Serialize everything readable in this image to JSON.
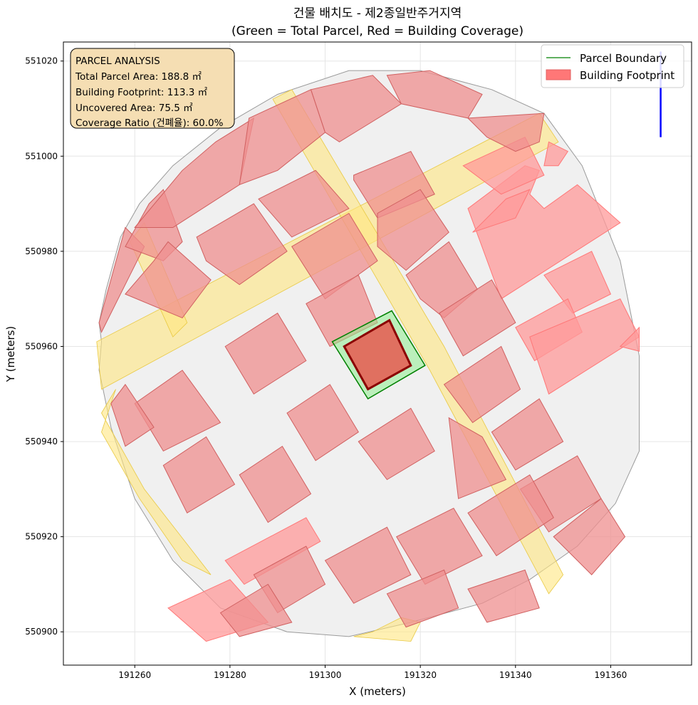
{
  "chart_data": {
    "type": "map",
    "title_line1": "건물 배치도 - 제2종일반주거지역",
    "title_line2": "(Green = Total Parcel, Red = Building Coverage)",
    "xlabel": "X (meters)",
    "ylabel": "Y (meters)",
    "xlim": [
      191245,
      191377
    ],
    "ylim": [
      550893,
      551024
    ],
    "xticks": [
      191260,
      191280,
      191300,
      191320,
      191340,
      191360
    ],
    "yticks": [
      550900,
      550920,
      550940,
      550960,
      550980,
      551000,
      551020
    ],
    "grid": true,
    "legend_position": "top-right",
    "legend": [
      {
        "label": "Parcel Boundary",
        "kind": "line",
        "color": "#008000"
      },
      {
        "label": "Building Footprint",
        "kind": "patch",
        "color": "#ff7777"
      }
    ],
    "analysis_box": {
      "lines": [
        "PARCEL ANALYSIS",
        "Total Parcel Area: 188.8 ㎡",
        "Building Footprint: 113.3 ㎡",
        "Uncovered Area: 75.5 ㎡",
        "Coverage Ratio (건폐율): 60.0%"
      ],
      "facecolor": "#f5deb3"
    },
    "target_parcel": [
      [
        191301.5,
        550961
      ],
      [
        191314,
        550967.5
      ],
      [
        191321,
        550956
      ],
      [
        191309,
        550949
      ]
    ],
    "target_building": [
      [
        191304,
        550960
      ],
      [
        191313.5,
        550965.5
      ],
      [
        191318,
        550956
      ],
      [
        191309,
        550951
      ]
    ],
    "north_arrow": {
      "x": 191370.5,
      "y1": 551004,
      "y2": 551022,
      "color": "#0000ff"
    },
    "context_outline": [
      [
        191253,
        550961
      ],
      [
        191252.5,
        550965
      ],
      [
        191254,
        550972
      ],
      [
        191257,
        550983
      ],
      [
        191261,
        550990
      ],
      [
        191268,
        550998
      ],
      [
        191278,
        551006
      ],
      [
        191290,
        551013
      ],
      [
        191305,
        551018
      ],
      [
        191320,
        551018
      ],
      [
        191335,
        551014
      ],
      [
        191346,
        551009
      ],
      [
        191354,
        550998
      ],
      [
        191362,
        550978
      ],
      [
        191366,
        550958
      ],
      [
        191366,
        550938
      ],
      [
        191361,
        550927
      ],
      [
        191353,
        550918
      ],
      [
        191343,
        550911
      ],
      [
        191333,
        550906
      ],
      [
        191318,
        550902
      ],
      [
        191305,
        550899
      ],
      [
        191292,
        550900
      ],
      [
        191278,
        550905
      ],
      [
        191268,
        550915
      ],
      [
        191260,
        550928
      ],
      [
        191255,
        550943
      ],
      [
        191252.5,
        550955
      ]
    ],
    "blocks": [
      [
        [
          191253,
          550963
        ],
        [
          191259,
          550975
        ],
        [
          191262,
          550981
        ],
        [
          191258,
          550985
        ],
        [
          191252.5,
          550965
        ]
      ],
      [
        [
          191258,
          550981
        ],
        [
          191263,
          550990
        ],
        [
          191266,
          550993
        ],
        [
          191270,
          550982
        ],
        [
          191266,
          550978
        ]
      ],
      [
        [
          191260,
          550985
        ],
        [
          191270,
          550997
        ],
        [
          191277,
          551003
        ],
        [
          191285,
          551008
        ],
        [
          191282,
          550994
        ],
        [
          191268,
          550985
        ]
      ],
      [
        [
          191284,
          551008
        ],
        [
          191297,
          551014
        ],
        [
          191300,
          551005
        ],
        [
          191290,
          550997
        ],
        [
          191282,
          550994
        ]
      ],
      [
        [
          191297,
          551014
        ],
        [
          191310,
          551017
        ],
        [
          191316,
          551011
        ],
        [
          191303,
          551003
        ],
        [
          191300,
          551005
        ]
      ],
      [
        [
          191313,
          551017
        ],
        [
          191322,
          551018
        ],
        [
          191333,
          551013
        ],
        [
          191330,
          551008
        ],
        [
          191316,
          551011
        ]
      ],
      [
        [
          191330,
          551008
        ],
        [
          191346,
          551009
        ],
        [
          191345,
          551003
        ],
        [
          191340,
          551001
        ],
        [
          191334,
          551004
        ]
      ],
      [
        [
          191306,
          550996
        ],
        [
          191318,
          551001
        ],
        [
          191323,
          550992
        ],
        [
          191311,
          550987
        ],
        [
          191306,
          550995
        ]
      ],
      [
        [
          191286,
          550991
        ],
        [
          191298,
          550997
        ],
        [
          191305,
          550989
        ],
        [
          191293,
          550983
        ]
      ],
      [
        [
          191273,
          550983
        ],
        [
          191285,
          550990
        ],
        [
          191292,
          550980
        ],
        [
          191282,
          550973
        ],
        [
          191275,
          550978
        ]
      ],
      [
        [
          191258,
          550971
        ],
        [
          191264,
          550978
        ],
        [
          191267,
          550982
        ],
        [
          191276,
          550974
        ],
        [
          191270,
          550966
        ]
      ],
      [
        [
          191293,
          550981
        ],
        [
          191305,
          550988
        ],
        [
          191311,
          550978
        ],
        [
          191300,
          550970
        ]
      ],
      [
        [
          191311,
          550988
        ],
        [
          191320,
          550993
        ],
        [
          191326,
          550984
        ],
        [
          191317,
          550976
        ],
        [
          191311,
          550981
        ]
      ],
      [
        [
          191317,
          550975
        ],
        [
          191326,
          550982
        ],
        [
          191332,
          550972
        ],
        [
          191325,
          550966
        ],
        [
          191320,
          550970
        ]
      ],
      [
        [
          191296,
          550969
        ],
        [
          191307,
          550975
        ],
        [
          191311,
          550965
        ],
        [
          191301,
          550960
        ]
      ],
      [
        [
          191279,
          550960
        ],
        [
          191290,
          550967
        ],
        [
          191296,
          550957
        ],
        [
          191285,
          550950
        ]
      ],
      [
        [
          191260,
          550948
        ],
        [
          191270,
          550955
        ],
        [
          191278,
          550944
        ],
        [
          191266,
          550938
        ]
      ],
      [
        [
          191255,
          550948
        ],
        [
          191258,
          550952
        ],
        [
          191264,
          550943
        ],
        [
          191258,
          550939
        ]
      ],
      [
        [
          191266,
          550935
        ],
        [
          191275,
          550941
        ],
        [
          191281,
          550931
        ],
        [
          191271,
          550925
        ]
      ],
      [
        [
          191282,
          550933
        ],
        [
          191291,
          550939
        ],
        [
          191297,
          550929
        ],
        [
          191288,
          550923
        ]
      ],
      [
        [
          191292,
          550946
        ],
        [
          191301,
          550952
        ],
        [
          191307,
          550942
        ],
        [
          191298,
          550936
        ]
      ],
      [
        [
          191307,
          550940
        ],
        [
          191318,
          550947
        ],
        [
          191323,
          550938
        ],
        [
          191313,
          550932
        ]
      ],
      [
        [
          191324,
          550967
        ],
        [
          191335,
          550974
        ],
        [
          191340,
          550965
        ],
        [
          191329,
          550958
        ]
      ],
      [
        [
          191325,
          550952
        ],
        [
          191337,
          550960
        ],
        [
          191341,
          550951
        ],
        [
          191331,
          550944
        ]
      ],
      [
        [
          191326,
          550945
        ],
        [
          191333,
          550941
        ],
        [
          191338,
          550932
        ],
        [
          191328,
          550928
        ]
      ],
      [
        [
          191335,
          550942
        ],
        [
          191345,
          550949
        ],
        [
          191350,
          550940
        ],
        [
          191340,
          550934
        ]
      ],
      [
        [
          191341,
          550930
        ],
        [
          191353,
          550937
        ],
        [
          191358,
          550928
        ],
        [
          191347,
          550921
        ]
      ],
      [
        [
          191348,
          550920
        ],
        [
          191358,
          550928
        ],
        [
          191363,
          550920
        ],
        [
          191356,
          550912
        ]
      ],
      [
        [
          191330,
          550925
        ],
        [
          191343,
          550933
        ],
        [
          191348,
          550924
        ],
        [
          191336,
          550916
        ]
      ],
      [
        [
          191315,
          550920
        ],
        [
          191327,
          550926
        ],
        [
          191333,
          550916
        ],
        [
          191321,
          550910
        ]
      ],
      [
        [
          191300,
          550915
        ],
        [
          191313,
          550922
        ],
        [
          191318,
          550912
        ],
        [
          191306,
          550906
        ]
      ],
      [
        [
          191313,
          550908
        ],
        [
          191325,
          550913
        ],
        [
          191328,
          550905
        ],
        [
          191317,
          550901
        ]
      ],
      [
        [
          191330,
          550909
        ],
        [
          191342,
          550913
        ],
        [
          191345,
          550905
        ],
        [
          191334,
          550902
        ]
      ],
      [
        [
          191285,
          550912
        ],
        [
          191296,
          550918
        ],
        [
          191300,
          550910
        ],
        [
          191290,
          550904
        ]
      ],
      [
        [
          191278,
          550904
        ],
        [
          191288,
          550910
        ],
        [
          191293,
          550902
        ],
        [
          191282,
          550899
        ]
      ]
    ],
    "roads": [
      [
        [
          191252,
          550961
        ],
        [
          191345,
          551009
        ],
        [
          191349,
          551003
        ],
        [
          191253,
          550951
        ]
      ],
      [
        [
          191289,
          551012
        ],
        [
          191293,
          551014
        ],
        [
          191325,
          550960
        ],
        [
          191350,
          550912
        ],
        [
          191347,
          550908
        ],
        [
          191322,
          550955
        ]
      ],
      [
        [
          191256,
          550951
        ],
        [
          191253,
          550946
        ],
        [
          191262,
          550930
        ],
        [
          191276,
          550912
        ],
        [
          191270,
          550915
        ],
        [
          191261,
          550928
        ],
        [
          191253,
          550942
        ]
      ],
      [
        [
          191310,
          550900
        ],
        [
          191316,
          550903
        ],
        [
          191320,
          550902
        ],
        [
          191318,
          550898
        ],
        [
          191306,
          550899
        ]
      ],
      [
        [
          191259,
          550982
        ],
        [
          191262,
          550986
        ],
        [
          191271,
          550965
        ],
        [
          191268,
          550962
        ]
      ]
    ],
    "far_buildings": [
      [
        [
          191330,
          550989
        ],
        [
          191342,
          550998
        ],
        [
          191345,
          550997
        ],
        [
          191343,
          550992
        ],
        [
          191346,
          550989
        ],
        [
          191353,
          550994
        ],
        [
          191362,
          550986
        ],
        [
          191337,
          550970
        ]
      ],
      [
        [
          191338,
          550991
        ],
        [
          191343,
          550993
        ],
        [
          191340,
          550987
        ],
        [
          191331,
          550984
        ]
      ],
      [
        [
          191329,
          550998
        ],
        [
          191342,
          551004
        ],
        [
          191346,
          550996
        ],
        [
          191337,
          550992
        ]
      ],
      [
        [
          191347,
          551003
        ],
        [
          191351,
          551001
        ],
        [
          191349,
          550998
        ],
        [
          191346,
          550998
        ]
      ],
      [
        [
          191346,
          550975
        ],
        [
          191356,
          550980
        ],
        [
          191360,
          550971
        ],
        [
          191352,
          550967
        ]
      ],
      [
        [
          191340,
          550964
        ],
        [
          191351,
          550970
        ],
        [
          191354,
          550963
        ],
        [
          191344,
          550957
        ]
      ],
      [
        [
          191343,
          550962
        ],
        [
          191362,
          550970
        ],
        [
          191366,
          550962
        ],
        [
          191347,
          550950
        ]
      ],
      [
        [
          191362,
          550960
        ],
        [
          191366,
          550964
        ],
        [
          191366,
          550959
        ]
      ],
      [
        [
          191267,
          550905
        ],
        [
          191280,
          550911
        ],
        [
          191288,
          550902
        ],
        [
          191275,
          550898
        ]
      ],
      [
        [
          191279,
          550915
        ],
        [
          191296,
          550924
        ],
        [
          191299,
          550919
        ],
        [
          191283,
          550910
        ]
      ]
    ]
  }
}
